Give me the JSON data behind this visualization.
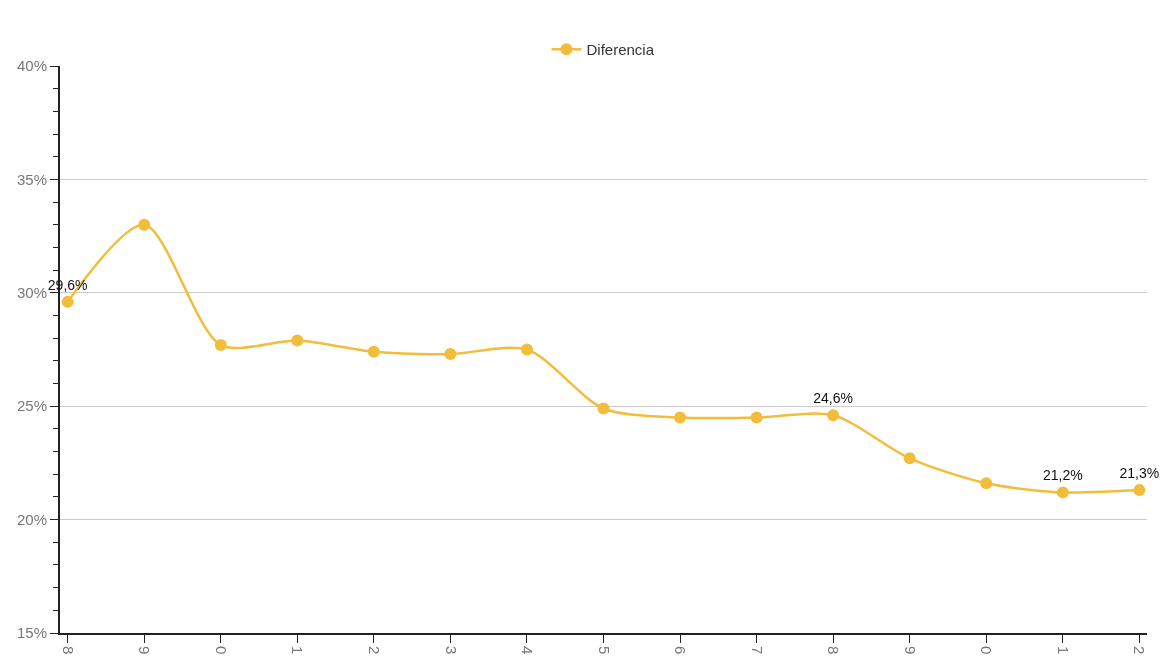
{
  "chart_data": {
    "type": "line",
    "categories": [
      "8",
      "9",
      "0",
      "1",
      "2",
      "3",
      "4",
      "5",
      "6",
      "7",
      "8",
      "9",
      "0",
      "1",
      "2"
    ],
    "series": [
      {
        "name": "Diferencia",
        "color": "#f2bd3a",
        "values": [
          29.6,
          33.0,
          27.7,
          27.9,
          27.4,
          27.3,
          27.5,
          24.9,
          24.5,
          24.5,
          24.6,
          22.7,
          21.6,
          21.2,
          21.3
        ],
        "value_labels": [
          "29,6%",
          null,
          null,
          null,
          null,
          null,
          null,
          null,
          null,
          null,
          "24,6%",
          null,
          null,
          "21,2%",
          "21,3%"
        ]
      }
    ],
    "ylim": [
      15,
      40
    ],
    "yticks": [
      {
        "value": 15,
        "label": "15%"
      },
      {
        "value": 16,
        "label": null
      },
      {
        "value": 17,
        "label": null
      },
      {
        "value": 18,
        "label": null
      },
      {
        "value": 19,
        "label": null
      },
      {
        "value": 20,
        "label": "20%"
      },
      {
        "value": 21,
        "label": null
      },
      {
        "value": 22,
        "label": null
      },
      {
        "value": 23,
        "label": null
      },
      {
        "value": 24,
        "label": null
      },
      {
        "value": 25,
        "label": "25%"
      },
      {
        "value": 26,
        "label": null
      },
      {
        "value": 27,
        "label": null
      },
      {
        "value": 28,
        "label": null
      },
      {
        "value": 29,
        "label": null
      },
      {
        "value": 30,
        "label": "30%"
      },
      {
        "value": 31,
        "label": null
      },
      {
        "value": 32,
        "label": null
      },
      {
        "value": 33,
        "label": null
      },
      {
        "value": 34,
        "label": null
      },
      {
        "value": 35,
        "label": "35%"
      },
      {
        "value": 36,
        "label": null
      },
      {
        "value": 37,
        "label": null
      },
      {
        "value": 38,
        "label": null
      },
      {
        "value": 39,
        "label": null
      },
      {
        "value": 40,
        "label": "40%"
      }
    ],
    "grid": "y",
    "legend": "top",
    "marker": "circle",
    "line_style": "solid"
  }
}
